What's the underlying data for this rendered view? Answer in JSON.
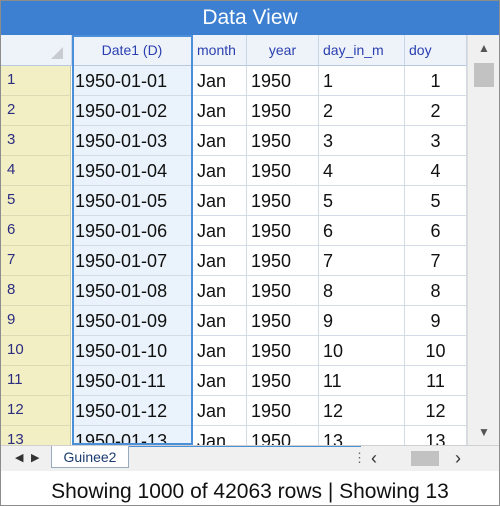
{
  "window": {
    "title": "Data View"
  },
  "columns": [
    {
      "key": "date",
      "label": "Date1 (D)"
    },
    {
      "key": "month",
      "label": "month"
    },
    {
      "key": "year",
      "label": "year"
    },
    {
      "key": "day",
      "label": "day_in_m"
    },
    {
      "key": "doy",
      "label": "doy"
    }
  ],
  "rows": [
    {
      "num": "1",
      "date": "1950-01-01",
      "month": "Jan",
      "year": "1950",
      "day": "1",
      "doy": "1"
    },
    {
      "num": "2",
      "date": "1950-01-02",
      "month": "Jan",
      "year": "1950",
      "day": "2",
      "doy": "2"
    },
    {
      "num": "3",
      "date": "1950-01-03",
      "month": "Jan",
      "year": "1950",
      "day": "3",
      "doy": "3"
    },
    {
      "num": "4",
      "date": "1950-01-04",
      "month": "Jan",
      "year": "1950",
      "day": "4",
      "doy": "4"
    },
    {
      "num": "5",
      "date": "1950-01-05",
      "month": "Jan",
      "year": "1950",
      "day": "5",
      "doy": "5"
    },
    {
      "num": "6",
      "date": "1950-01-06",
      "month": "Jan",
      "year": "1950",
      "day": "6",
      "doy": "6"
    },
    {
      "num": "7",
      "date": "1950-01-07",
      "month": "Jan",
      "year": "1950",
      "day": "7",
      "doy": "7"
    },
    {
      "num": "8",
      "date": "1950-01-08",
      "month": "Jan",
      "year": "1950",
      "day": "8",
      "doy": "8"
    },
    {
      "num": "9",
      "date": "1950-01-09",
      "month": "Jan",
      "year": "1950",
      "day": "9",
      "doy": "9"
    },
    {
      "num": "10",
      "date": "1950-01-10",
      "month": "Jan",
      "year": "1950",
      "day": "10",
      "doy": "10"
    },
    {
      "num": "11",
      "date": "1950-01-11",
      "month": "Jan",
      "year": "1950",
      "day": "11",
      "doy": "11"
    },
    {
      "num": "12",
      "date": "1950-01-12",
      "month": "Jan",
      "year": "1950",
      "day": "12",
      "doy": "12"
    },
    {
      "num": "13",
      "date": "1950-01-13",
      "month": "Jan",
      "year": "1950",
      "day": "13",
      "doy": "13"
    }
  ],
  "sheet_tab": {
    "label": "Guinee2"
  },
  "icons": {
    "scroll_up": "▲",
    "scroll_down": "▼",
    "tab_prev": "◀",
    "tab_next": "▶",
    "splitter": "⋮",
    "scroll_left": "‹",
    "scroll_right": "›"
  },
  "status": {
    "text": "Showing 1000 of 42063 rows | Showing 13"
  }
}
